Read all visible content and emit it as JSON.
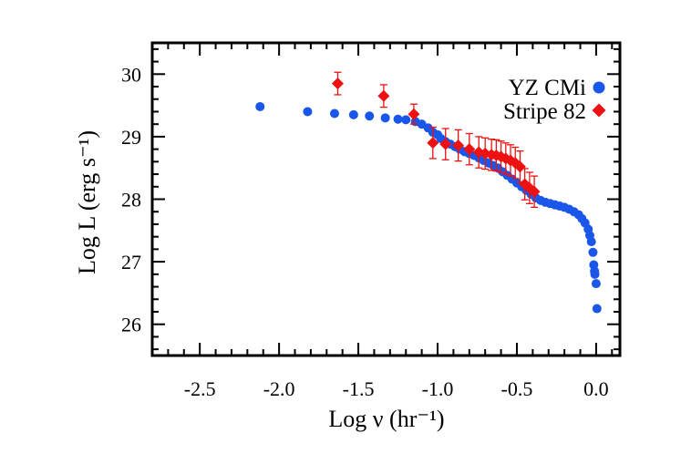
{
  "chart_data": {
    "type": "scatter",
    "xlabel": "Log ν (hr⁻¹)",
    "ylabel": "Log L (erg s⁻¹)",
    "xlim": [
      -2.8,
      0.15
    ],
    "ylim": [
      25.5,
      30.5
    ],
    "x_ticks": [
      -2.5,
      -2.0,
      -1.5,
      -1.0,
      -0.5,
      0.0
    ],
    "x_tick_labels": [
      "-2.5",
      "-2.0",
      "-1.5",
      "-1.0",
      "-0.5",
      "0.0"
    ],
    "y_ticks": [
      26,
      27,
      28,
      29,
      30
    ],
    "y_tick_labels": [
      "26",
      "27",
      "28",
      "29",
      "30"
    ],
    "grid": false,
    "legend_position": "top-right",
    "series": [
      {
        "name": "YZ CMi",
        "marker": "circle",
        "color": "#1a56e8",
        "points": [
          [
            -2.12,
            29.48
          ],
          [
            -1.82,
            29.4
          ],
          [
            -1.65,
            29.37
          ],
          [
            -1.53,
            29.35
          ],
          [
            -1.43,
            29.33
          ],
          [
            -1.33,
            29.3
          ],
          [
            -1.25,
            29.28
          ],
          [
            -1.2,
            29.27
          ],
          [
            -1.14,
            29.24
          ],
          [
            -1.1,
            29.2
          ],
          [
            -1.06,
            29.14
          ],
          [
            -1.03,
            29.07
          ],
          [
            -1.0,
            29.03
          ],
          [
            -0.98,
            28.97
          ],
          [
            -0.95,
            28.92
          ],
          [
            -0.92,
            28.88
          ],
          [
            -0.89,
            28.84
          ],
          [
            -0.86,
            28.8
          ],
          [
            -0.83,
            28.76
          ],
          [
            -0.8,
            28.73
          ],
          [
            -0.77,
            28.7
          ],
          [
            -0.74,
            28.66
          ],
          [
            -0.71,
            28.62
          ],
          [
            -0.68,
            28.58
          ],
          [
            -0.65,
            28.54
          ],
          [
            -0.62,
            28.5
          ],
          [
            -0.59,
            28.44
          ],
          [
            -0.56,
            28.38
          ],
          [
            -0.53,
            28.32
          ],
          [
            -0.5,
            28.26
          ],
          [
            -0.47,
            28.2
          ],
          [
            -0.44,
            28.14
          ],
          [
            -0.41,
            28.08
          ],
          [
            -0.38,
            28.02
          ],
          [
            -0.35,
            27.98
          ],
          [
            -0.32,
            27.95
          ],
          [
            -0.29,
            27.93
          ],
          [
            -0.26,
            27.91
          ],
          [
            -0.23,
            27.89
          ],
          [
            -0.2,
            27.87
          ],
          [
            -0.17,
            27.84
          ],
          [
            -0.14,
            27.8
          ],
          [
            -0.11,
            27.75
          ],
          [
            -0.09,
            27.69
          ],
          [
            -0.07,
            27.62
          ],
          [
            -0.05,
            27.52
          ],
          [
            -0.04,
            27.42
          ],
          [
            -0.03,
            27.32
          ],
          [
            -0.02,
            27.15
          ],
          [
            -0.015,
            26.95
          ],
          [
            -0.01,
            26.85
          ],
          [
            -0.008,
            26.8
          ],
          [
            0.0,
            26.65
          ],
          [
            0.005,
            26.25
          ]
        ]
      },
      {
        "name": "Stripe 82",
        "marker": "diamond",
        "color": "#ee1111",
        "points": [
          [
            -1.63,
            29.85,
            0.18
          ],
          [
            -1.34,
            29.65,
            0.18
          ],
          [
            -1.15,
            29.36,
            0.16
          ],
          [
            -1.03,
            28.9,
            0.25
          ],
          [
            -0.95,
            28.88,
            0.25
          ],
          [
            -0.87,
            28.86,
            0.25
          ],
          [
            -0.8,
            28.8,
            0.25
          ],
          [
            -0.74,
            28.75,
            0.25
          ],
          [
            -0.7,
            28.73,
            0.25
          ],
          [
            -0.66,
            28.71,
            0.25
          ],
          [
            -0.63,
            28.7,
            0.25
          ],
          [
            -0.6,
            28.68,
            0.25
          ],
          [
            -0.57,
            28.65,
            0.25
          ],
          [
            -0.54,
            28.62,
            0.25
          ],
          [
            -0.51,
            28.58,
            0.25
          ],
          [
            -0.48,
            28.52,
            0.25
          ],
          [
            -0.45,
            28.24,
            0.25
          ],
          [
            -0.42,
            28.18,
            0.25
          ],
          [
            -0.39,
            28.12,
            0.25
          ]
        ]
      }
    ]
  }
}
